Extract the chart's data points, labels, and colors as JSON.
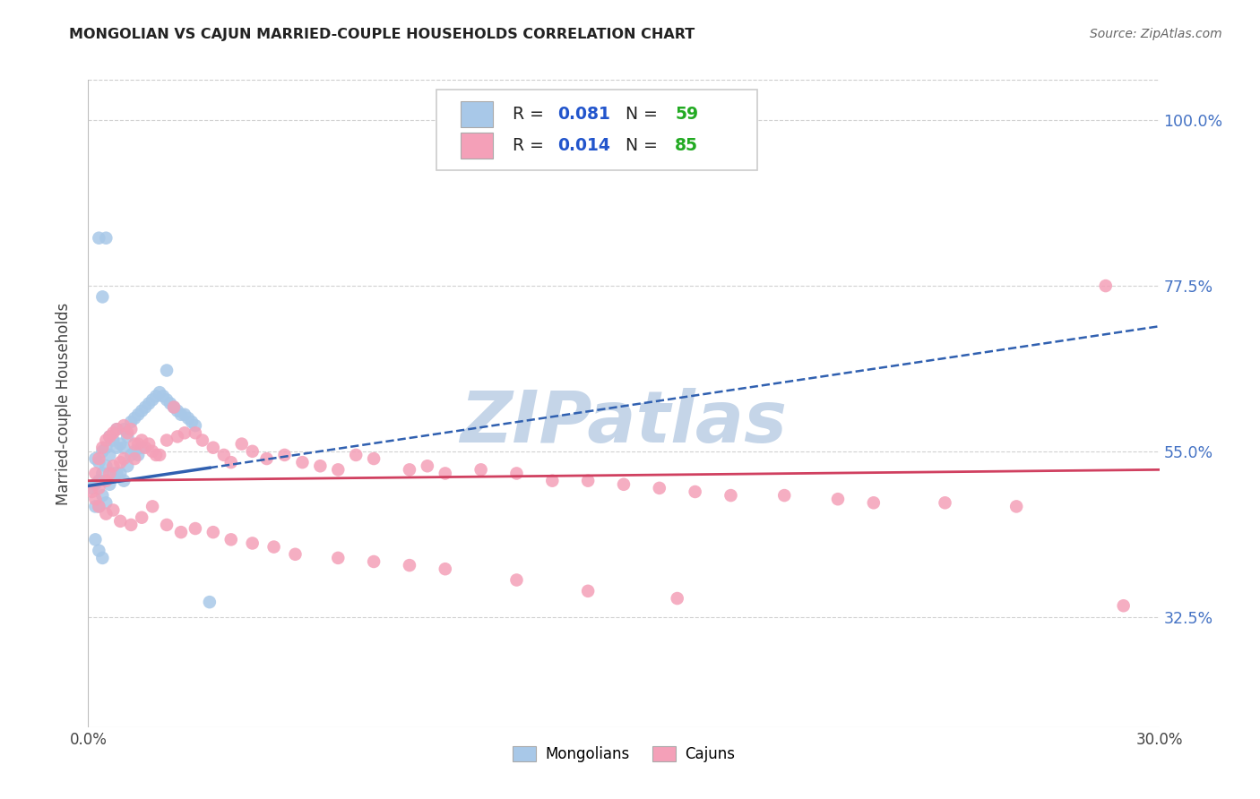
{
  "title": "MONGOLIAN VS CAJUN MARRIED-COUPLE HOUSEHOLDS CORRELATION CHART",
  "source": "Source: ZipAtlas.com",
  "ylabel": "Married-couple Households",
  "xmin": 0.0,
  "xmax": 0.3,
  "ymin": 0.175,
  "ymax": 1.055,
  "yticks": [
    0.325,
    0.55,
    0.775,
    1.0
  ],
  "ytick_labels": [
    "32.5%",
    "55.0%",
    "77.5%",
    "100.0%"
  ],
  "xtick_first": "0.0%",
  "xtick_last": "30.0%",
  "mongolian_color": "#a8c8e8",
  "cajun_color": "#f4a0b8",
  "mongolian_trend_color": "#3060b0",
  "cajun_trend_color": "#d04060",
  "r_mongolian": 0.081,
  "n_mongolian": 59,
  "r_cajun": 0.014,
  "n_cajun": 85,
  "legend_r_color": "#2255cc",
  "legend_n_color": "#22aa22",
  "watermark": "ZIPatlas",
  "watermark_color": "#c5d5e8",
  "background_color": "#ffffff",
  "grid_color": "#cccccc",
  "right_tick_color": "#4472c4",
  "title_color": "#222222",
  "source_color": "#666666"
}
